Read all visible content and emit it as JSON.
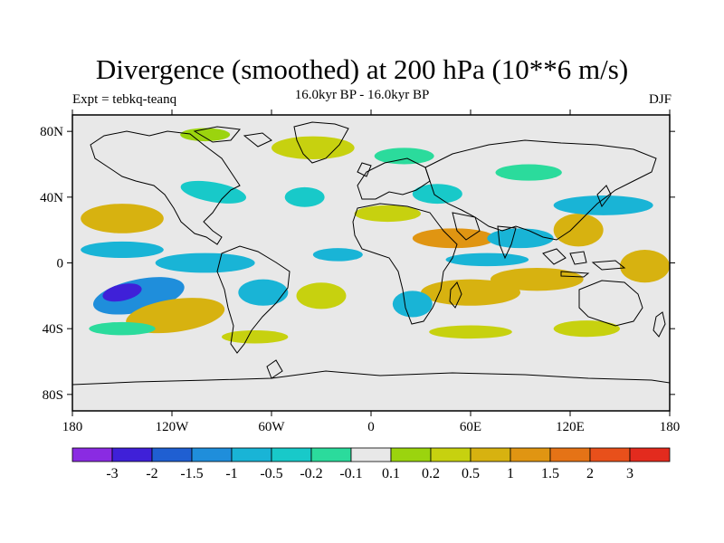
{
  "title": "Divergence (smoothed) at 200 hPa (10**6 m/s)",
  "subtitle": "16.0kyr BP - 16.0kyr BP",
  "left_label": "Expt = tebkq-teanq",
  "right_label": "DJF",
  "chart_data": {
    "type": "heatmap",
    "projection": "cylindrical-equidistant",
    "title": "Divergence (smoothed) at 200 hPa (10**6 m/s)",
    "xlim": [
      -180,
      180
    ],
    "ylim": [
      -90,
      90
    ],
    "x_ticks": [
      {
        "value": -180,
        "label": "180"
      },
      {
        "value": -120,
        "label": "120W"
      },
      {
        "value": -60,
        "label": "60W"
      },
      {
        "value": 0,
        "label": "0"
      },
      {
        "value": 60,
        "label": "60E"
      },
      {
        "value": 120,
        "label": "120E"
      },
      {
        "value": 180,
        "label": "180"
      }
    ],
    "y_ticks": [
      {
        "value": 80,
        "label": "80N"
      },
      {
        "value": 40,
        "label": "40N"
      },
      {
        "value": 0,
        "label": "0"
      },
      {
        "value": -40,
        "label": "40S"
      },
      {
        "value": -80,
        "label": "80S"
      }
    ],
    "colorbar": {
      "colors": [
        "#8a2be2",
        "#3f20d8",
        "#1f5fd2",
        "#1f8edb",
        "#19b4d6",
        "#18c9c9",
        "#2bdb9c",
        "#e8e8e8",
        "#9bd40e",
        "#c7d10f",
        "#d7b210",
        "#e09512",
        "#e57316",
        "#e8501b",
        "#e32b1e"
      ],
      "labels": [
        "-3",
        "-2",
        "-1.5",
        "-1",
        "-0.5",
        "-0.2",
        "-0.1",
        "0.1",
        "0.2",
        "0.5",
        "1",
        "1.5",
        "2",
        "3"
      ]
    },
    "regions": [
      {
        "lon": -140,
        "lat": -20,
        "rx": 28,
        "ry": 10,
        "rot": -12,
        "color": "#1f8edb",
        "level": "-1"
      },
      {
        "lon": -150,
        "lat": -18,
        "rx": 12,
        "ry": 5,
        "rot": -12,
        "color": "#3f20d8",
        "level": "-2"
      },
      {
        "lon": -118,
        "lat": -32,
        "rx": 30,
        "ry": 10,
        "rot": -8,
        "color": "#d7b210",
        "level": "1"
      },
      {
        "lon": -100,
        "lat": 0,
        "rx": 30,
        "ry": 6,
        "rot": 0,
        "color": "#19b4d6",
        "level": "-0.5"
      },
      {
        "lon": -150,
        "lat": 27,
        "rx": 25,
        "ry": 9,
        "rot": 0,
        "color": "#d7b210",
        "level": "1"
      },
      {
        "lon": -150,
        "lat": 8,
        "rx": 25,
        "ry": 5,
        "rot": 0,
        "color": "#19b4d6",
        "level": "-0.5"
      },
      {
        "lon": -95,
        "lat": 43,
        "rx": 20,
        "ry": 6,
        "rot": 10,
        "color": "#18c9c9",
        "level": "-0.2"
      },
      {
        "lon": -35,
        "lat": 70,
        "rx": 25,
        "ry": 7,
        "rot": 0,
        "color": "#c7d10f",
        "level": "0.5"
      },
      {
        "lon": -100,
        "lat": 78,
        "rx": 15,
        "ry": 4,
        "rot": 0,
        "color": "#9bd40e",
        "level": "0.2"
      },
      {
        "lon": -40,
        "lat": 40,
        "rx": 12,
        "ry": 6,
        "rot": 0,
        "color": "#18c9c9",
        "level": "-0.2"
      },
      {
        "lon": 40,
        "lat": 42,
        "rx": 15,
        "ry": 6,
        "rot": 0,
        "color": "#18c9c9",
        "level": "-0.2"
      },
      {
        "lon": 50,
        "lat": 15,
        "rx": 25,
        "ry": 6,
        "rot": 0,
        "color": "#e09512",
        "level": "1.5"
      },
      {
        "lon": 90,
        "lat": 15,
        "rx": 20,
        "ry": 6,
        "rot": 0,
        "color": "#19b4d6",
        "level": "-0.5"
      },
      {
        "lon": 125,
        "lat": 20,
        "rx": 15,
        "ry": 10,
        "rot": 0,
        "color": "#d7b210",
        "level": "1"
      },
      {
        "lon": 100,
        "lat": -10,
        "rx": 28,
        "ry": 7,
        "rot": 0,
        "color": "#d7b210",
        "level": "1"
      },
      {
        "lon": 60,
        "lat": -18,
        "rx": 30,
        "ry": 8,
        "rot": 0,
        "color": "#d7b210",
        "level": "1"
      },
      {
        "lon": 70,
        "lat": 2,
        "rx": 25,
        "ry": 4,
        "rot": 0,
        "color": "#19b4d6",
        "level": "-0.5"
      },
      {
        "lon": 140,
        "lat": 35,
        "rx": 30,
        "ry": 6,
        "rot": 0,
        "color": "#19b4d6",
        "level": "-0.5"
      },
      {
        "lon": 165,
        "lat": -2,
        "rx": 15,
        "ry": 10,
        "rot": 0,
        "color": "#d7b210",
        "level": "1"
      },
      {
        "lon": 25,
        "lat": -25,
        "rx": 12,
        "ry": 8,
        "rot": 0,
        "color": "#19b4d6",
        "level": "-0.5"
      },
      {
        "lon": -30,
        "lat": -20,
        "rx": 15,
        "ry": 8,
        "rot": 0,
        "color": "#c7d10f",
        "level": "0.5"
      },
      {
        "lon": -65,
        "lat": -18,
        "rx": 15,
        "ry": 8,
        "rot": 0,
        "color": "#19b4d6",
        "level": "-0.5"
      },
      {
        "lon": 130,
        "lat": -40,
        "rx": 20,
        "ry": 5,
        "rot": 0,
        "color": "#c7d10f",
        "level": "0.5"
      },
      {
        "lon": -20,
        "lat": 5,
        "rx": 15,
        "ry": 4,
        "rot": 0,
        "color": "#19b4d6",
        "level": "-0.5"
      },
      {
        "lon": 10,
        "lat": 30,
        "rx": 20,
        "ry": 5,
        "rot": 0,
        "color": "#c7d10f",
        "level": "0.5"
      },
      {
        "lon": 20,
        "lat": 65,
        "rx": 18,
        "ry": 5,
        "rot": 0,
        "color": "#2bdb9c",
        "level": "-0.1"
      },
      {
        "lon": 95,
        "lat": 55,
        "rx": 20,
        "ry": 5,
        "rot": 0,
        "color": "#2bdb9c",
        "level": "-0.1"
      },
      {
        "lon": -70,
        "lat": -45,
        "rx": 20,
        "ry": 4,
        "rot": 0,
        "color": "#c7d10f",
        "level": "0.5"
      },
      {
        "lon": 60,
        "lat": -42,
        "rx": 25,
        "ry": 4,
        "rot": 0,
        "color": "#c7d10f",
        "level": "0.5"
      },
      {
        "lon": -150,
        "lat": -40,
        "rx": 20,
        "ry": 4,
        "rot": 0,
        "color": "#2bdb9c",
        "level": "-0.1"
      }
    ]
  }
}
